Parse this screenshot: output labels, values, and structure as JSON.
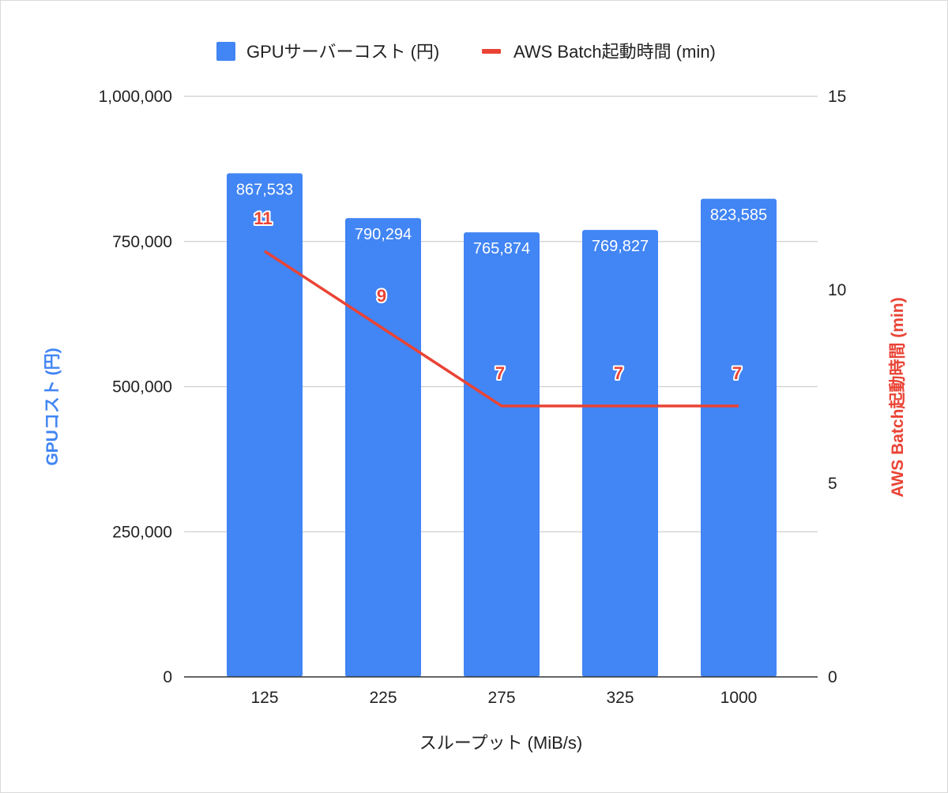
{
  "chart_data": {
    "type": "bar",
    "combo": "bar+line",
    "categories": [
      "125",
      "225",
      "275",
      "325",
      "1000"
    ],
    "xlabel": "スループット (MiB/s)",
    "ylabel_left": "GPUコスト (円)",
    "ylabel_right": "AWS Batch起動時間 (min)",
    "ylim_left": [
      0,
      1000000
    ],
    "ylim_right": [
      0,
      15
    ],
    "left_ticks": [
      "0",
      "250,000",
      "500,000",
      "750,000",
      "1,000,000"
    ],
    "left_tick_values": [
      0,
      250000,
      500000,
      750000,
      1000000
    ],
    "right_ticks": [
      "0",
      "5",
      "10",
      "15"
    ],
    "right_tick_values": [
      0,
      5,
      10,
      15
    ],
    "grid": true,
    "legend_position": "top",
    "series": [
      {
        "name": "GPUサーバーコスト (円)",
        "type": "bar",
        "axis": "left",
        "values": [
          867533,
          790294,
          765874,
          769827,
          823585
        ],
        "labels": [
          "867,533",
          "790,294",
          "765,874",
          "769,827",
          "823,585"
        ],
        "color": "#4285f4"
      },
      {
        "name": "AWS Batch起動時間 (min)",
        "type": "line",
        "axis": "right",
        "values": [
          11,
          9,
          7,
          7,
          7
        ],
        "labels": [
          "11",
          "9",
          "7",
          "7",
          "7"
        ],
        "color": "#ea4335"
      }
    ]
  }
}
